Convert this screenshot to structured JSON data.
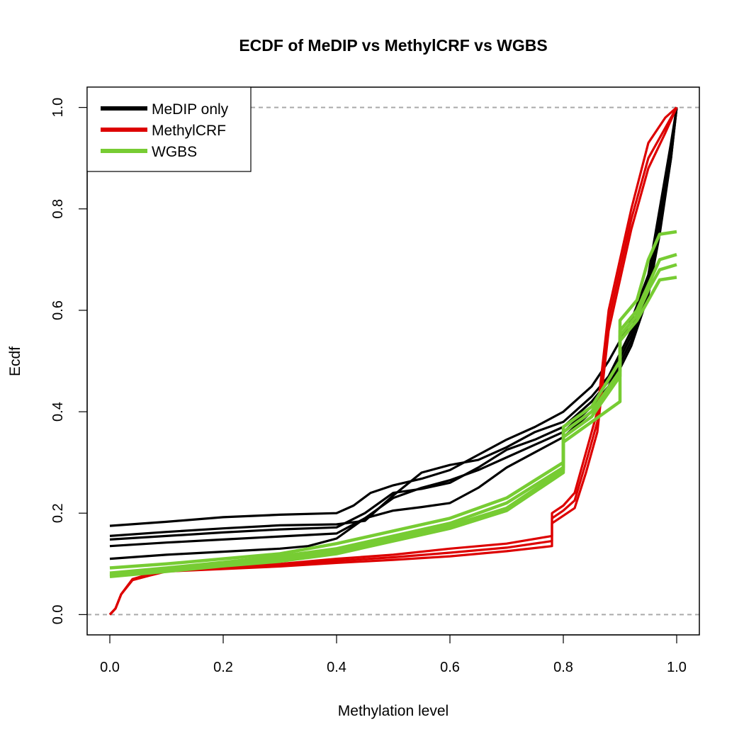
{
  "chart_data": {
    "type": "line",
    "title": "ECDF of MeDIP vs MethylCRF vs WGBS",
    "xlabel": "Methylation level",
    "ylabel": "Ecdf",
    "xlim": [
      -0.04,
      1.04
    ],
    "ylim": [
      -0.04,
      1.04
    ],
    "x_ticks": [
      "0.0",
      "0.2",
      "0.4",
      "0.6",
      "0.8",
      "1.0"
    ],
    "x_tick_values": [
      0,
      0.2,
      0.4,
      0.6,
      0.8,
      1.0
    ],
    "y_ticks": [
      "0.0",
      "0.2",
      "0.4",
      "0.6",
      "0.8",
      "1.0"
    ],
    "y_tick_values": [
      0,
      0.2,
      0.4,
      0.6,
      0.8,
      1.0
    ],
    "reference_lines": [
      0,
      1
    ],
    "grid": false,
    "legend": {
      "position": "top-left",
      "entries": [
        {
          "label": "MeDIP only",
          "color": "#000000"
        },
        {
          "label": "MethylCRF",
          "color": "#dd0000"
        },
        {
          "label": "WGBS",
          "color": "#77cc33"
        }
      ]
    },
    "series": [
      {
        "group": "MeDIP only",
        "color": "#000000",
        "points": [
          [
            0,
            0.175
          ],
          [
            0.1,
            0.183
          ],
          [
            0.2,
            0.192
          ],
          [
            0.3,
            0.197
          ],
          [
            0.4,
            0.2
          ],
          [
            0.43,
            0.215
          ],
          [
            0.46,
            0.24
          ],
          [
            0.5,
            0.255
          ],
          [
            0.55,
            0.268
          ],
          [
            0.6,
            0.285
          ],
          [
            0.65,
            0.315
          ],
          [
            0.7,
            0.345
          ],
          [
            0.75,
            0.37
          ],
          [
            0.8,
            0.4
          ],
          [
            0.85,
            0.45
          ],
          [
            0.88,
            0.5
          ],
          [
            0.92,
            0.58
          ],
          [
            0.95,
            0.67
          ],
          [
            0.97,
            0.8
          ],
          [
            0.99,
            0.93
          ],
          [
            1.0,
            1.0
          ]
        ]
      },
      {
        "group": "MeDIP only",
        "color": "#000000",
        "points": [
          [
            0,
            0.155
          ],
          [
            0.1,
            0.163
          ],
          [
            0.2,
            0.17
          ],
          [
            0.3,
            0.176
          ],
          [
            0.4,
            0.178
          ],
          [
            0.45,
            0.185
          ],
          [
            0.5,
            0.235
          ],
          [
            0.55,
            0.28
          ],
          [
            0.6,
            0.295
          ],
          [
            0.65,
            0.305
          ],
          [
            0.7,
            0.33
          ],
          [
            0.75,
            0.36
          ],
          [
            0.8,
            0.38
          ],
          [
            0.85,
            0.43
          ],
          [
            0.88,
            0.47
          ],
          [
            0.92,
            0.56
          ],
          [
            0.95,
            0.66
          ],
          [
            0.97,
            0.78
          ],
          [
            0.99,
            0.92
          ],
          [
            1.0,
            1.0
          ]
        ]
      },
      {
        "group": "MeDIP only",
        "color": "#000000",
        "points": [
          [
            0,
            0.148
          ],
          [
            0.1,
            0.155
          ],
          [
            0.2,
            0.162
          ],
          [
            0.3,
            0.168
          ],
          [
            0.4,
            0.172
          ],
          [
            0.45,
            0.2
          ],
          [
            0.5,
            0.24
          ],
          [
            0.55,
            0.248
          ],
          [
            0.6,
            0.26
          ],
          [
            0.65,
            0.29
          ],
          [
            0.7,
            0.325
          ],
          [
            0.75,
            0.345
          ],
          [
            0.8,
            0.37
          ],
          [
            0.85,
            0.42
          ],
          [
            0.88,
            0.46
          ],
          [
            0.92,
            0.55
          ],
          [
            0.95,
            0.65
          ],
          [
            0.97,
            0.77
          ],
          [
            0.99,
            0.91
          ],
          [
            1.0,
            1.0
          ]
        ]
      },
      {
        "group": "MeDIP only",
        "color": "#000000",
        "points": [
          [
            0,
            0.135
          ],
          [
            0.1,
            0.142
          ],
          [
            0.2,
            0.148
          ],
          [
            0.3,
            0.154
          ],
          [
            0.4,
            0.16
          ],
          [
            0.45,
            0.19
          ],
          [
            0.5,
            0.23
          ],
          [
            0.55,
            0.25
          ],
          [
            0.6,
            0.265
          ],
          [
            0.65,
            0.285
          ],
          [
            0.7,
            0.31
          ],
          [
            0.75,
            0.335
          ],
          [
            0.8,
            0.36
          ],
          [
            0.85,
            0.41
          ],
          [
            0.88,
            0.45
          ],
          [
            0.92,
            0.54
          ],
          [
            0.95,
            0.64
          ],
          [
            0.97,
            0.76
          ],
          [
            0.99,
            0.9
          ],
          [
            1.0,
            1.0
          ]
        ]
      },
      {
        "group": "MeDIP only",
        "color": "#000000",
        "points": [
          [
            0,
            0.11
          ],
          [
            0.1,
            0.118
          ],
          [
            0.2,
            0.124
          ],
          [
            0.3,
            0.13
          ],
          [
            0.35,
            0.135
          ],
          [
            0.4,
            0.15
          ],
          [
            0.45,
            0.19
          ],
          [
            0.5,
            0.205
          ],
          [
            0.55,
            0.212
          ],
          [
            0.6,
            0.22
          ],
          [
            0.65,
            0.25
          ],
          [
            0.7,
            0.29
          ],
          [
            0.75,
            0.32
          ],
          [
            0.8,
            0.35
          ],
          [
            0.85,
            0.4
          ],
          [
            0.88,
            0.44
          ],
          [
            0.92,
            0.53
          ],
          [
            0.95,
            0.63
          ],
          [
            0.97,
            0.75
          ],
          [
            0.99,
            0.9
          ],
          [
            1.0,
            1.0
          ]
        ]
      },
      {
        "group": "MethylCRF",
        "color": "#dd0000",
        "points": [
          [
            0,
            0
          ],
          [
            0.01,
            0.012
          ],
          [
            0.02,
            0.04
          ],
          [
            0.04,
            0.07
          ],
          [
            0.07,
            0.08
          ],
          [
            0.1,
            0.088
          ],
          [
            0.2,
            0.095
          ],
          [
            0.3,
            0.1
          ],
          [
            0.4,
            0.11
          ],
          [
            0.5,
            0.118
          ],
          [
            0.6,
            0.13
          ],
          [
            0.7,
            0.14
          ],
          [
            0.78,
            0.155
          ],
          [
            0.78,
            0.2
          ],
          [
            0.8,
            0.215
          ],
          [
            0.82,
            0.24
          ],
          [
            0.84,
            0.32
          ],
          [
            0.86,
            0.4
          ],
          [
            0.87,
            0.5
          ],
          [
            0.88,
            0.6
          ],
          [
            0.89,
            0.65
          ],
          [
            0.9,
            0.7
          ],
          [
            0.92,
            0.8
          ],
          [
            0.95,
            0.93
          ],
          [
            0.98,
            0.98
          ],
          [
            1.0,
            1.0
          ]
        ]
      },
      {
        "group": "MethylCRF",
        "color": "#dd0000",
        "points": [
          [
            0,
            0
          ],
          [
            0.01,
            0.012
          ],
          [
            0.02,
            0.04
          ],
          [
            0.04,
            0.07
          ],
          [
            0.07,
            0.078
          ],
          [
            0.1,
            0.086
          ],
          [
            0.2,
            0.093
          ],
          [
            0.3,
            0.098
          ],
          [
            0.4,
            0.106
          ],
          [
            0.5,
            0.113
          ],
          [
            0.6,
            0.122
          ],
          [
            0.7,
            0.132
          ],
          [
            0.78,
            0.145
          ],
          [
            0.78,
            0.19
          ],
          [
            0.8,
            0.205
          ],
          [
            0.82,
            0.225
          ],
          [
            0.84,
            0.3
          ],
          [
            0.86,
            0.38
          ],
          [
            0.87,
            0.48
          ],
          [
            0.88,
            0.58
          ],
          [
            0.89,
            0.63
          ],
          [
            0.9,
            0.68
          ],
          [
            0.92,
            0.78
          ],
          [
            0.95,
            0.9
          ],
          [
            0.98,
            0.96
          ],
          [
            1.0,
            1.0
          ]
        ]
      },
      {
        "group": "MethylCRF",
        "color": "#dd0000",
        "points": [
          [
            0,
            0
          ],
          [
            0.01,
            0.012
          ],
          [
            0.02,
            0.04
          ],
          [
            0.04,
            0.068
          ],
          [
            0.07,
            0.077
          ],
          [
            0.1,
            0.085
          ],
          [
            0.2,
            0.09
          ],
          [
            0.3,
            0.095
          ],
          [
            0.4,
            0.102
          ],
          [
            0.5,
            0.108
          ],
          [
            0.6,
            0.115
          ],
          [
            0.7,
            0.125
          ],
          [
            0.78,
            0.135
          ],
          [
            0.78,
            0.18
          ],
          [
            0.8,
            0.195
          ],
          [
            0.82,
            0.21
          ],
          [
            0.84,
            0.28
          ],
          [
            0.86,
            0.36
          ],
          [
            0.87,
            0.46
          ],
          [
            0.88,
            0.56
          ],
          [
            0.89,
            0.61
          ],
          [
            0.9,
            0.66
          ],
          [
            0.92,
            0.76
          ],
          [
            0.95,
            0.88
          ],
          [
            0.98,
            0.95
          ],
          [
            1.0,
            1.0
          ]
        ]
      },
      {
        "group": "WGBS",
        "color": "#77cc33",
        "points": [
          [
            0,
            0.092
          ],
          [
            0.1,
            0.1
          ],
          [
            0.2,
            0.11
          ],
          [
            0.3,
            0.12
          ],
          [
            0.4,
            0.14
          ],
          [
            0.5,
            0.165
          ],
          [
            0.6,
            0.19
          ],
          [
            0.7,
            0.23
          ],
          [
            0.8,
            0.3
          ],
          [
            0.8,
            0.37
          ],
          [
            0.85,
            0.41
          ],
          [
            0.9,
            0.5
          ],
          [
            0.9,
            0.58
          ],
          [
            0.93,
            0.62
          ],
          [
            0.95,
            0.7
          ],
          [
            0.97,
            0.75
          ],
          [
            1.0,
            0.755
          ]
        ]
      },
      {
        "group": "WGBS",
        "color": "#77cc33",
        "points": [
          [
            0,
            0.082
          ],
          [
            0.1,
            0.092
          ],
          [
            0.2,
            0.103
          ],
          [
            0.3,
            0.115
          ],
          [
            0.4,
            0.13
          ],
          [
            0.5,
            0.155
          ],
          [
            0.6,
            0.18
          ],
          [
            0.7,
            0.22
          ],
          [
            0.8,
            0.29
          ],
          [
            0.8,
            0.36
          ],
          [
            0.85,
            0.4
          ],
          [
            0.9,
            0.48
          ],
          [
            0.9,
            0.56
          ],
          [
            0.93,
            0.6
          ],
          [
            0.95,
            0.65
          ],
          [
            0.97,
            0.7
          ],
          [
            1.0,
            0.71
          ]
        ]
      },
      {
        "group": "WGBS",
        "color": "#77cc33",
        "points": [
          [
            0,
            0.078
          ],
          [
            0.1,
            0.088
          ],
          [
            0.2,
            0.1
          ],
          [
            0.3,
            0.11
          ],
          [
            0.4,
            0.125
          ],
          [
            0.5,
            0.15
          ],
          [
            0.6,
            0.175
          ],
          [
            0.7,
            0.21
          ],
          [
            0.8,
            0.285
          ],
          [
            0.8,
            0.35
          ],
          [
            0.85,
            0.39
          ],
          [
            0.9,
            0.47
          ],
          [
            0.9,
            0.55
          ],
          [
            0.93,
            0.59
          ],
          [
            0.95,
            0.64
          ],
          [
            0.97,
            0.68
          ],
          [
            1.0,
            0.69
          ]
        ]
      },
      {
        "group": "WGBS",
        "color": "#77cc33",
        "points": [
          [
            0,
            0.075
          ],
          [
            0.1,
            0.085
          ],
          [
            0.2,
            0.096
          ],
          [
            0.3,
            0.105
          ],
          [
            0.4,
            0.12
          ],
          [
            0.5,
            0.145
          ],
          [
            0.6,
            0.17
          ],
          [
            0.7,
            0.205
          ],
          [
            0.8,
            0.28
          ],
          [
            0.8,
            0.34
          ],
          [
            0.85,
            0.38
          ],
          [
            0.9,
            0.42
          ],
          [
            0.9,
            0.54
          ],
          [
            0.93,
            0.58
          ],
          [
            0.95,
            0.62
          ],
          [
            0.97,
            0.66
          ],
          [
            1.0,
            0.665
          ]
        ]
      }
    ]
  }
}
